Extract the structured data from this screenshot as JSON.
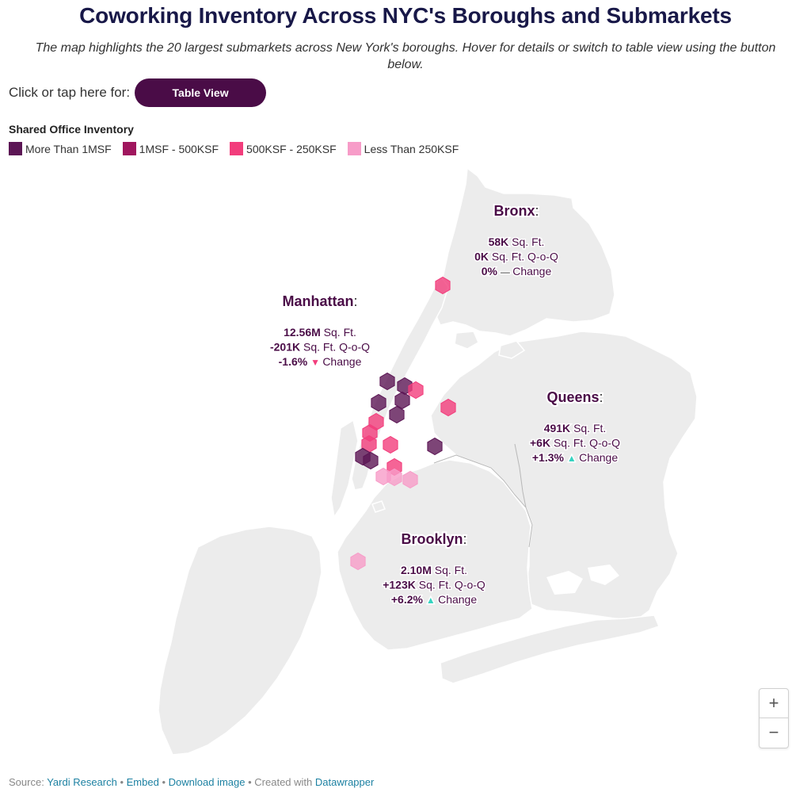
{
  "title": "Coworking Inventory Across NYC's Boroughs and Submarkets",
  "subtitle": "The map highlights the 20 largest submarkets across New York's boroughs. Hover for details or switch to table view using the button below.",
  "cta": {
    "label": "Click or tap here for:",
    "button": "Table View"
  },
  "legend": {
    "title": "Shared Office Inventory",
    "items": [
      {
        "label": "More Than 1MSF",
        "color": "#5c1655"
      },
      {
        "label": "1MSF - 500KSF",
        "color": "#a0165e"
      },
      {
        "label": "500KSF - 250KSF",
        "color": "#f23d7c"
      },
      {
        "label": "Less Than 250KSF",
        "color": "#f79cc8"
      }
    ]
  },
  "boroughs": [
    {
      "name": "Bronx",
      "line1_value": "58K",
      "line1_unit": "Sq. Ft.",
      "line2_value": "0K",
      "line2_unit": "Sq. Ft. Q-o-Q",
      "line3_value": "0%",
      "line3_unit": "Change",
      "trend": "flat"
    },
    {
      "name": "Manhattan",
      "line1_value": "12.56M",
      "line1_unit": "Sq. Ft.",
      "line2_value": "-201K",
      "line2_unit": "Sq. Ft. Q-o-Q",
      "line3_value": "-1.6%",
      "line3_unit": "Change",
      "trend": "down"
    },
    {
      "name": "Queens",
      "line1_value": "491K",
      "line1_unit": "Sq. Ft.",
      "line2_value": "+6K",
      "line2_unit": "Sq. Ft. Q-o-Q",
      "line3_value": "+1.3%",
      "line3_unit": "Change",
      "trend": "up"
    },
    {
      "name": "Brooklyn",
      "line1_value": "2.10M",
      "line1_unit": "Sq. Ft.",
      "line2_value": "+123K",
      "line2_unit": "Sq. Ft. Q-o-Q",
      "line3_value": "+6.2%",
      "line3_unit": "Change",
      "trend": "up"
    }
  ],
  "colors": {
    "up": "#35d3c0",
    "down": "#f23d7c",
    "flat": "#222222",
    "land": "#ececec",
    "label": "#4a0c47"
  },
  "zoom": {
    "in": "+",
    "out": "−"
  },
  "footer": {
    "source_prefix": "Source:",
    "source": "Yardi Research",
    "embed": "Embed",
    "download": "Download image",
    "created_with": "Created with",
    "tool": "Datawrapper"
  }
}
